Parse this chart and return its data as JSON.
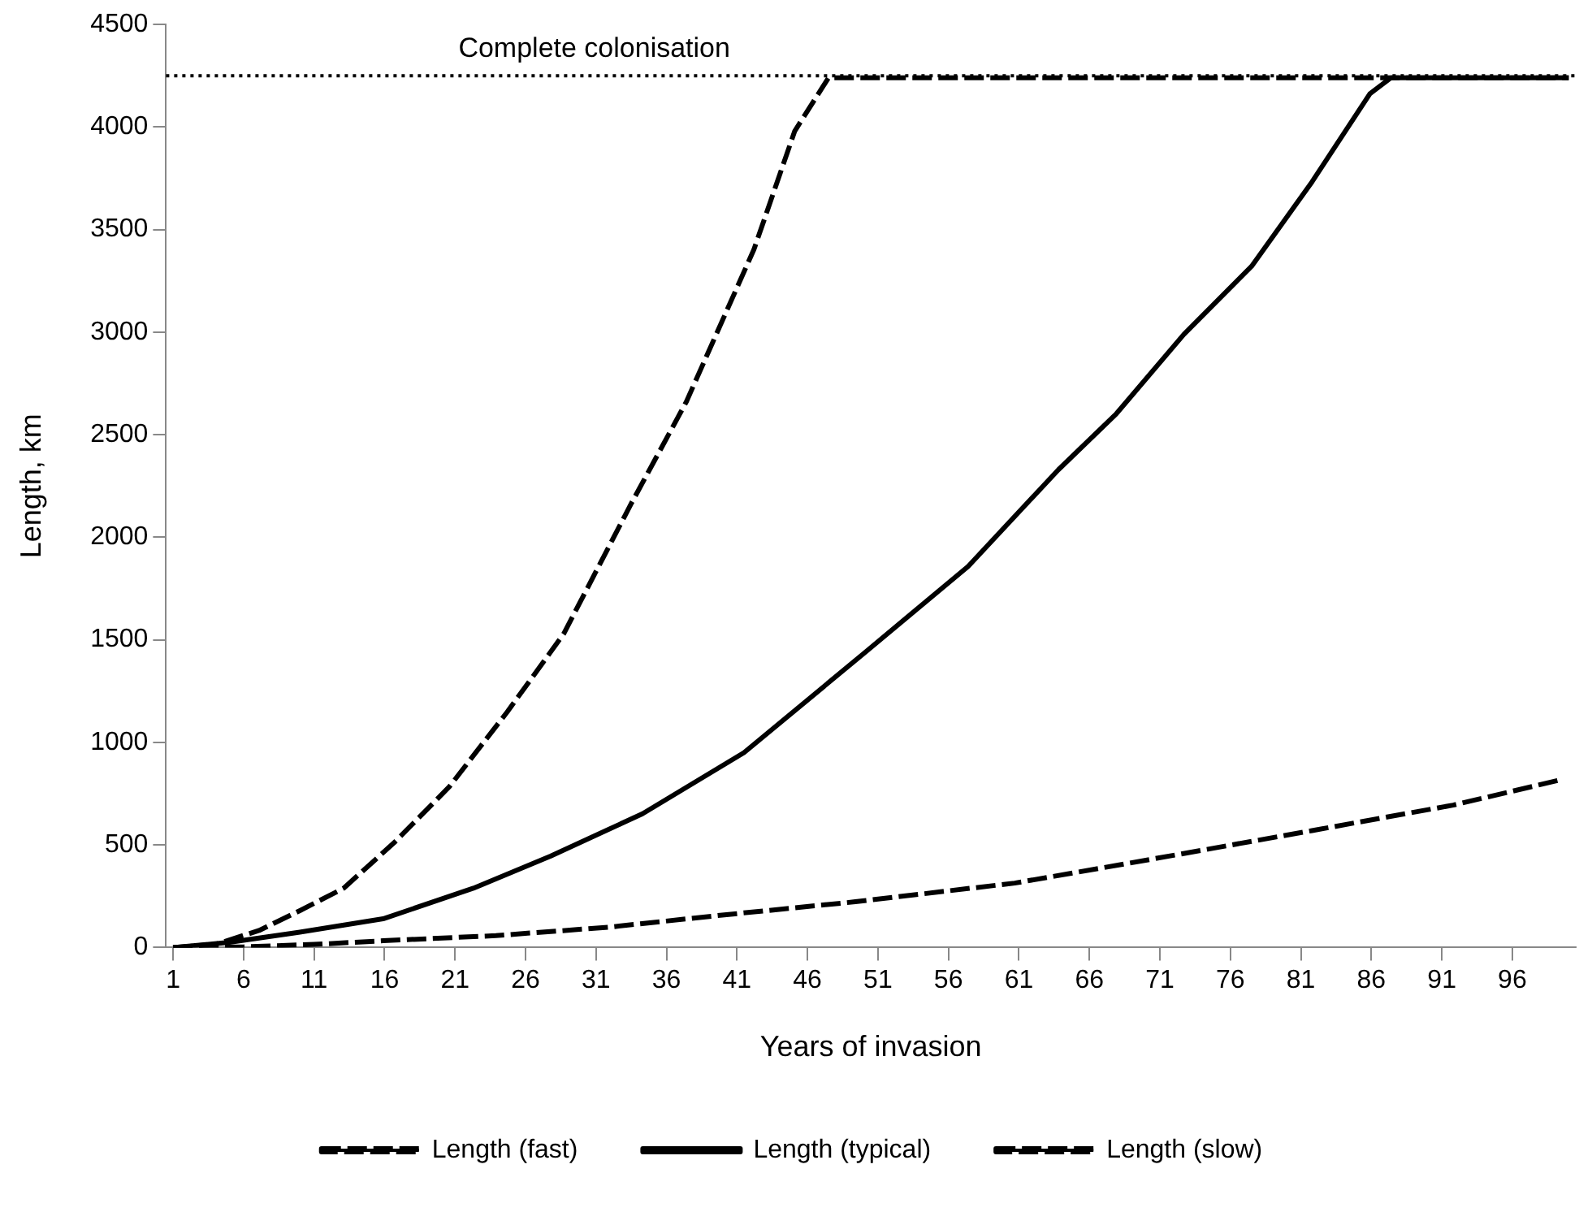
{
  "chart_data": {
    "type": "line",
    "xlabel": "Years of invasion",
    "ylabel": "Length, km",
    "xlim": [
      0.5,
      100.5
    ],
    "xticks": [
      1,
      6,
      11,
      16,
      21,
      26,
      31,
      36,
      41,
      46,
      51,
      56,
      61,
      66,
      71,
      76,
      81,
      86,
      91,
      96
    ],
    "ylim": [
      0,
      4500
    ],
    "yticks": [
      0,
      500,
      1000,
      1500,
      2000,
      2500,
      3000,
      3500,
      4000,
      4500
    ],
    "grid": false,
    "legend": "bottom",
    "marker": "none",
    "ref_lines": [
      {
        "axis": "y",
        "value": 4250,
        "label": "Complete colonisation",
        "line_style": "dotted",
        "color": "#000000"
      }
    ],
    "series": [
      {
        "name": "Length (fast)",
        "color": "#000000",
        "line_style": "dashed",
        "x": [
          1,
          4,
          7.1,
          10,
          13.1,
          16.7,
          20.6,
          24.7,
          28.7,
          33.5,
          37.4,
          42.2,
          45.1,
          47.5,
          100
        ],
        "values": [
          0,
          15,
          83,
          180,
          289,
          512,
          784,
          1148,
          1528,
          2164,
          2659,
          3402,
          3980,
          4240,
          4240
        ]
      },
      {
        "name": "Length (typical)",
        "color": "#000000",
        "line_style": "solid",
        "x": [
          1,
          5,
          9.9,
          15.9,
          22.3,
          27.8,
          34.3,
          41.5,
          50.2,
          57.4,
          63.8,
          67.9,
          72.7,
          77.5,
          81.8,
          85.9,
          87.4,
          100
        ],
        "values": [
          0,
          25,
          74,
          140,
          289,
          446,
          652,
          950,
          1445,
          1858,
          2329,
          2601,
          2989,
          3320,
          3733,
          4162,
          4240,
          4240
        ]
      },
      {
        "name": "Length (slow)",
        "color": "#000000",
        "line_style": "dashed",
        "x": [
          1,
          6,
          11,
          15.9,
          23.9,
          31.9,
          39.8,
          49.4,
          60.7,
          70.3,
          81.8,
          91.8,
          99.4
        ],
        "values": [
          0,
          3,
          15,
          33,
          58,
          99,
          157,
          223,
          314,
          429,
          570,
          694,
          817
        ]
      }
    ]
  }
}
